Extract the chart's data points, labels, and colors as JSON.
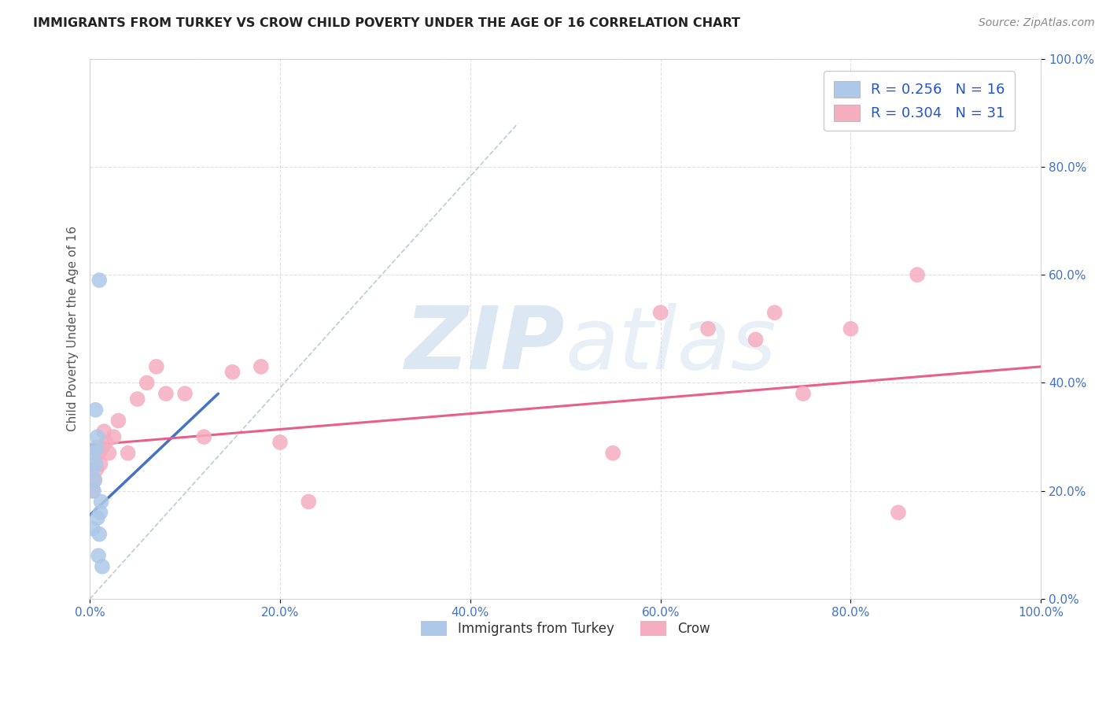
{
  "title": "IMMIGRANTS FROM TURKEY VS CROW CHILD POVERTY UNDER THE AGE OF 16 CORRELATION CHART",
  "source": "Source: ZipAtlas.com",
  "ylabel": "Child Poverty Under the Age of 16",
  "xlim": [
    0.0,
    1.0
  ],
  "ylim": [
    0.0,
    1.0
  ],
  "xticks": [
    0.0,
    0.2,
    0.4,
    0.6,
    0.8,
    1.0
  ],
  "yticks": [
    0.0,
    0.2,
    0.4,
    0.6,
    0.8,
    1.0
  ],
  "xticklabels": [
    "0.0%",
    "20.0%",
    "40.0%",
    "60.0%",
    "80.0%",
    "100.0%"
  ],
  "yticklabels": [
    "0.0%",
    "20.0%",
    "40.0%",
    "60.0%",
    "80.0%",
    "100.0%"
  ],
  "legend_label_blue": "Immigrants from Turkey",
  "legend_label_pink": "Crow",
  "R_blue": "0.256",
  "N_blue": "16",
  "R_pink": "0.304",
  "N_pink": "31",
  "blue_color": "#adc8e8",
  "pink_color": "#f5adc0",
  "blue_line_color": "#4472c4",
  "pink_line_color": "#e8608a",
  "dash_line_color": "#aabfcf",
  "tick_color": "#4472c4",
  "watermark_color": "#ccdded",
  "blue_scatter_x": [
    0.003,
    0.004,
    0.005,
    0.006,
    0.007,
    0.008,
    0.009,
    0.01,
    0.011,
    0.012,
    0.013,
    0.003,
    0.004,
    0.006,
    0.008,
    0.01
  ],
  "blue_scatter_y": [
    0.13,
    0.2,
    0.22,
    0.25,
    0.28,
    0.3,
    0.08,
    0.12,
    0.16,
    0.18,
    0.06,
    0.24,
    0.27,
    0.35,
    0.15,
    0.59
  ],
  "pink_scatter_x": [
    0.003,
    0.005,
    0.007,
    0.009,
    0.011,
    0.013,
    0.015,
    0.017,
    0.02,
    0.025,
    0.03,
    0.04,
    0.05,
    0.06,
    0.07,
    0.08,
    0.1,
    0.12,
    0.15,
    0.18,
    0.2,
    0.23,
    0.55,
    0.6,
    0.65,
    0.7,
    0.72,
    0.75,
    0.8,
    0.85,
    0.87
  ],
  "pink_scatter_y": [
    0.2,
    0.22,
    0.24,
    0.27,
    0.25,
    0.28,
    0.31,
    0.29,
    0.27,
    0.3,
    0.33,
    0.27,
    0.37,
    0.4,
    0.43,
    0.38,
    0.38,
    0.3,
    0.42,
    0.43,
    0.29,
    0.18,
    0.27,
    0.53,
    0.5,
    0.48,
    0.53,
    0.38,
    0.5,
    0.16,
    0.6
  ],
  "blue_line_x": [
    0.0,
    0.135
  ],
  "blue_line_y": [
    0.155,
    0.38
  ],
  "pink_line_x": [
    0.0,
    1.0
  ],
  "pink_line_y": [
    0.285,
    0.43
  ],
  "dash_line_x": [
    0.0,
    0.45
  ],
  "dash_line_y": [
    0.0,
    0.88
  ],
  "scatter_size": 200
}
